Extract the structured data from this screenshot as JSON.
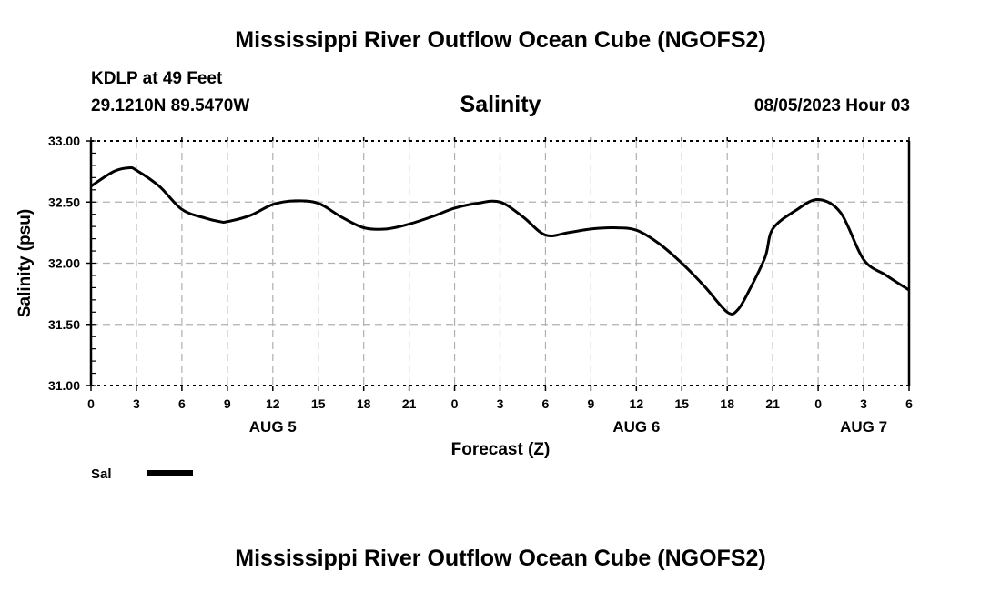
{
  "header": {
    "title": "Mississippi River Outflow Ocean Cube (NGOFS2)",
    "station": "KDLP at 49 Feet",
    "location": "29.1210N  89.5470W",
    "date": "08/05/2023 Hour 03",
    "footer_title": "Mississippi River Outflow Ocean Cube (NGOFS2)"
  },
  "chart_data": {
    "type": "line",
    "title": "Salinity",
    "xlabel": "Forecast (Z)",
    "ylabel": "Salinity (psu)",
    "ylim": [
      31.0,
      33.0
    ],
    "xlim": [
      0,
      54
    ],
    "grid": true,
    "yticks": [
      "31.00",
      "31.50",
      "32.00",
      "32.50",
      "33.00"
    ],
    "ytick_values": [
      31.0,
      31.5,
      32.0,
      32.5,
      33.0
    ],
    "xtick_labels": [
      "0",
      "3",
      "6",
      "9",
      "12",
      "15",
      "18",
      "21",
      "0",
      "3",
      "6",
      "9",
      "12",
      "15",
      "18",
      "21",
      "0",
      "3",
      "6"
    ],
    "day_labels": [
      {
        "label": "AUG 5",
        "hour": 12
      },
      {
        "label": "AUG 6",
        "hour": 36
      },
      {
        "label": "AUG 7",
        "hour": 51
      }
    ],
    "legend": {
      "label": "Sal",
      "placement": "bottom-left",
      "color": "#000000"
    },
    "series": [
      {
        "name": "Sal",
        "x": [
          0,
          1.5,
          2.5,
          3,
          4.5,
          6,
          7.5,
          8.5,
          9,
          10.5,
          12,
          13.5,
          15,
          16.5,
          18,
          19.5,
          21,
          22.5,
          24,
          25.5,
          27,
          28.5,
          30,
          31.5,
          33,
          34.5,
          36,
          37.5,
          39,
          40.5,
          42,
          42.7,
          43.5,
          44.5,
          45,
          46.5,
          48,
          49.5,
          51,
          52.5,
          54
        ],
        "values": [
          32.63,
          32.75,
          32.78,
          32.76,
          32.63,
          32.44,
          32.37,
          32.34,
          32.34,
          32.39,
          32.48,
          32.51,
          32.49,
          32.38,
          32.29,
          32.28,
          32.32,
          32.38,
          32.45,
          32.49,
          32.5,
          32.38,
          32.23,
          32.25,
          32.28,
          32.29,
          32.27,
          32.16,
          32.0,
          31.81,
          31.6,
          31.62,
          31.79,
          32.05,
          32.28,
          32.43,
          32.52,
          32.41,
          32.03,
          31.9,
          31.78
        ]
      }
    ]
  }
}
